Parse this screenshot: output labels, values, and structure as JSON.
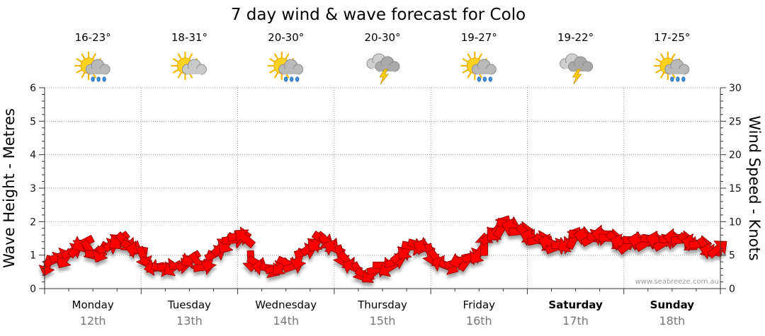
{
  "chart_data": {
    "type": "line",
    "title": "7 day wind & wave forecast for Colo",
    "ylabel_left": "Wave Height - Metres",
    "ylabel_right": "Wind Speed - Knots",
    "ylim_left": [
      0,
      6
    ],
    "ylim_right": [
      0,
      30
    ],
    "yticks_left": [
      "0",
      "1",
      "2",
      "3",
      "4",
      "5",
      "6"
    ],
    "yticks_right": [
      "0",
      "5",
      "10",
      "15",
      "20",
      "25",
      "30"
    ],
    "grid": true,
    "days": [
      {
        "day": "Monday",
        "date": "12th",
        "temp": "16-23°",
        "icon": "sun-cloud-rain-icon",
        "bold": false
      },
      {
        "day": "Tuesday",
        "date": "13th",
        "temp": "18-31°",
        "icon": "sun-cloud-icon",
        "bold": false
      },
      {
        "day": "Wednesday",
        "date": "14th",
        "temp": "20-30°",
        "icon": "sun-cloud-rain-icon",
        "bold": false
      },
      {
        "day": "Thursday",
        "date": "15th",
        "temp": "20-30°",
        "icon": "cloud-storm-icon",
        "bold": false
      },
      {
        "day": "Friday",
        "date": "16th",
        "temp": "19-27°",
        "icon": "sun-cloud-rain-icon",
        "bold": false
      },
      {
        "day": "Saturday",
        "date": "17th",
        "temp": "19-22°",
        "icon": "cloud-storm-icon",
        "bold": true
      },
      {
        "day": "Sunday",
        "date": "18th",
        "temp": "17-25°",
        "icon": "sun-cloud-rain-icon",
        "bold": true
      }
    ],
    "series": [
      {
        "name": "Wind Speed",
        "axis": "right",
        "color": "#ff0000",
        "values": [
          3.5,
          4.2,
          4.8,
          4.5,
          5.5,
          6.0,
          6.8,
          5.8,
          5.2,
          5.5,
          6.2,
          6.8,
          7.2,
          7.0,
          6.2,
          5.8,
          4.8,
          3.6,
          3.2,
          3.0,
          3.3,
          3.1,
          3.4,
          3.8,
          4.5,
          4.0,
          3.2,
          4.2,
          5.2,
          6.2,
          6.8,
          7.3,
          7.8,
          7.5,
          4.2,
          3.8,
          3.2,
          2.8,
          3.0,
          3.3,
          3.8,
          3.3,
          4.5,
          5.5,
          6.2,
          7.0,
          7.3,
          6.8,
          6.0,
          5.0,
          4.2,
          3.2,
          2.6,
          2.1,
          2.0,
          2.8,
          3.5,
          3.0,
          4.0,
          5.0,
          5.8,
          6.3,
          6.5,
          6.1,
          5.2,
          4.5,
          3.6,
          3.3,
          3.8,
          4.2,
          4.0,
          4.8,
          5.2,
          6.5,
          7.8,
          8.6,
          9.2,
          9.5,
          9.1,
          8.6,
          8.2,
          7.6,
          7.3,
          7.0,
          6.8,
          6.2,
          6.5,
          6.8,
          7.5,
          8.0,
          7.8,
          7.5,
          7.8,
          8.1,
          7.6,
          7.2,
          6.8,
          6.5,
          7.2,
          7.1,
          6.8,
          7.3,
          7.2,
          6.8,
          7.4,
          7.6,
          7.3,
          7.0,
          6.8,
          6.6,
          6.2,
          5.6,
          5.9
        ]
      }
    ],
    "credit": "www.seabreeze.com.au"
  }
}
